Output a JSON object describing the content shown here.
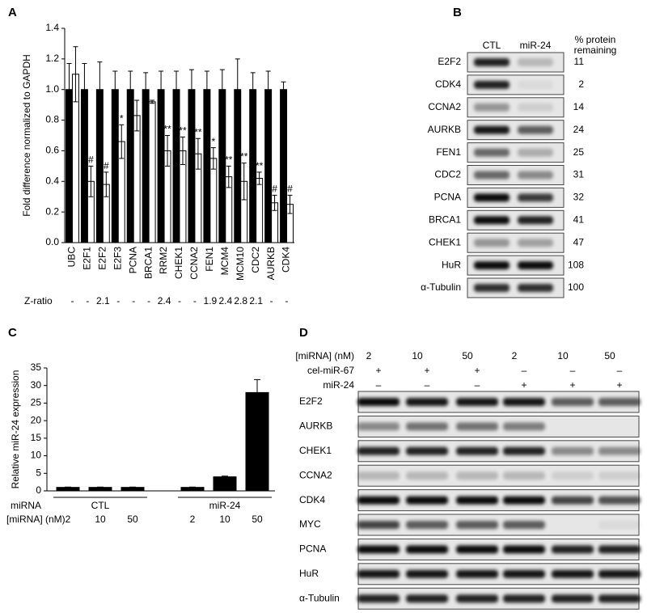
{
  "chart_data": [
    {
      "panel": "A",
      "type": "bar",
      "ylabel": "Fold difference normalized to GAPDH",
      "categories": [
        "UBC",
        "E2F1",
        "E2F2",
        "E2F3",
        "PCNA",
        "BRCA1",
        "RRM2",
        "CHEK1",
        "CCNA2",
        "FEN1",
        "MCM4",
        "MCM10",
        "CDC2",
        "AURKB",
        "CDK4"
      ],
      "series": [
        {
          "color": "#000000",
          "values": [
            1,
            1,
            1,
            1,
            1,
            1,
            1,
            1,
            1,
            1,
            1,
            1,
            1,
            1,
            1
          ],
          "errors": [
            0.17,
            0.17,
            0.18,
            0.12,
            0.12,
            0.11,
            0.12,
            0.12,
            0.13,
            0.12,
            0.13,
            0.2,
            0.11,
            0.12,
            0.05
          ]
        },
        {
          "color": "#ffffff",
          "values": [
            1.1,
            0.4,
            0.38,
            0.66,
            0.83,
            0.92,
            0.6,
            0.6,
            0.58,
            0.55,
            0.43,
            0.4,
            0.42,
            0.26,
            0.25
          ],
          "errors": [
            0.18,
            0.1,
            0.08,
            0.11,
            0.1,
            0.01,
            0.1,
            0.09,
            0.1,
            0.07,
            0.07,
            0.12,
            0.04,
            0.05,
            0.06
          ],
          "annotations": [
            null,
            "#",
            "#",
            "*",
            null,
            null,
            "**",
            "**",
            "**",
            "*",
            "**",
            "**",
            "**",
            "#",
            "#"
          ]
        }
      ],
      "ylim": [
        0,
        1.4
      ],
      "yticks": [
        {
          "value": 0,
          "label": "0.0"
        },
        0.2,
        0.4,
        0.6,
        0.8,
        {
          "value": 1,
          "label": "1.0"
        },
        1.2,
        1.4
      ],
      "z_ratio": {
        "label": "Z-ratio",
        "values": [
          "-",
          "-",
          2.1,
          "-",
          "-",
          "-",
          2.4,
          "-",
          "-",
          1.9,
          2.4,
          2.8,
          2.1,
          "-",
          "-"
        ]
      }
    },
    {
      "panel": "C",
      "type": "bar",
      "ylabel": "Relative miR-24 expression",
      "categories": [
        2,
        10,
        50,
        2,
        10,
        50
      ],
      "values": [
        1,
        1,
        1,
        1,
        4,
        28
      ],
      "errors": [
        0.1,
        0.1,
        0.1,
        0.1,
        0.2,
        3.7
      ],
      "color": "#000000",
      "ylim": [
        0,
        35
      ],
      "yticks": [
        0,
        5,
        10,
        15,
        20,
        25,
        30,
        35
      ],
      "row_labels": [
        "miRNA",
        "[miRNA] (nM)"
      ],
      "groups": [
        "CTL",
        "miR-24"
      ]
    }
  ],
  "blot_b": {
    "panel": "B",
    "lanes": [
      "CTL",
      "miR-24"
    ],
    "value_header": "% protein remaining",
    "rows": [
      {
        "label": "E2F2",
        "value": 11
      },
      {
        "label": "CDK4",
        "value": 2
      },
      {
        "label": "CCNA2",
        "value": 14
      },
      {
        "label": "AURKB",
        "value": 24
      },
      {
        "label": "FEN1",
        "value": 25
      },
      {
        "label": "CDC2",
        "value": 31
      },
      {
        "label": "PCNA",
        "value": 32
      },
      {
        "label": "BRCA1",
        "value": 41
      },
      {
        "label": "CHEK1",
        "value": 47
      },
      {
        "label": "HuR",
        "value": 108
      },
      {
        "label": "α-Tubulin",
        "value": 100
      }
    ]
  },
  "blot_d": {
    "panel": "D",
    "conditions": [
      {
        "label": "[miRNA] (nM)",
        "values": [
          2,
          10,
          50,
          2,
          10,
          50
        ]
      },
      {
        "label": "cel-miR-67",
        "values": [
          "+",
          "+",
          "+",
          "–",
          "–",
          "–"
        ]
      },
      {
        "label": "miR-24",
        "values": [
          "–",
          "–",
          "–",
          "+",
          "+",
          "+"
        ]
      }
    ],
    "rows": [
      "E2F2",
      "AURKB",
      "CHEK1",
      "CCNA2",
      "CDK4",
      "MYC",
      "PCNA",
      "HuR",
      "α-Tubulin"
    ]
  }
}
